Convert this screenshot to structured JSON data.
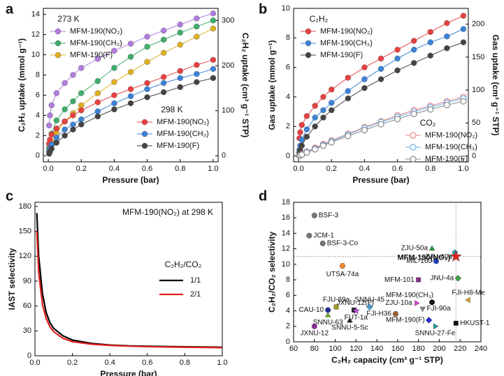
{
  "chart_data": [
    {
      "type": "line",
      "panel_label": "a",
      "x_label": "Pressure (bar)",
      "y_label": "C₂H₂ uptake (mmol g⁻¹)",
      "y2_label": "C₂H₂ uptake (cm³ g⁻¹ STP)",
      "annotations": [
        "273 K",
        "298 K"
      ],
      "x": [
        0.005,
        0.01,
        0.02,
        0.05,
        0.1,
        0.15,
        0.2,
        0.3,
        0.4,
        0.5,
        0.6,
        0.7,
        0.8,
        0.9,
        1.0
      ],
      "xlim": [
        -0.03,
        1.03
      ],
      "xticks": [
        {
          "value": 0,
          "label": "0.0"
        },
        0.2,
        0.4,
        0.6,
        0.8,
        {
          "value": 1,
          "label": "1.0"
        }
      ],
      "ylim": [
        -0.6,
        14.6
      ],
      "yticks": [
        0,
        2,
        4,
        6,
        8,
        10,
        12,
        14
      ],
      "y2lim": [
        -13.4,
        327
      ],
      "y2ticks": [
        0,
        100,
        200,
        300
      ],
      "series": [
        {
          "name": "MFM-190(NO₂)",
          "color": "#b07de0",
          "filled": true,
          "values": [
            3,
            4,
            5,
            6.2,
            7.2,
            8,
            8.7,
            9.6,
            10.4,
            11.1,
            11.8,
            12.4,
            13,
            13.6,
            14.1
          ]
        },
        {
          "name": "MFM-190(CH₃)",
          "color": "#3fae6a",
          "filled": true,
          "values": [
            0.8,
            1.3,
            2.2,
            3.5,
            4.6,
            5.4,
            6.2,
            7.4,
            8.7,
            9.8,
            10.8,
            11.5,
            12.2,
            12.8,
            13.4
          ]
        },
        {
          "name": "MFM-190(F)",
          "color": "#e0b020",
          "filled": true,
          "values": [
            0.5,
            0.8,
            1.3,
            2.3,
            3.4,
            4.2,
            5,
            6.2,
            7.3,
            8.3,
            9.3,
            10.2,
            11,
            11.8,
            12.6
          ]
        },
        {
          "name": "MFM-190(NO₂)",
          "color": "#e84040",
          "filled": true,
          "values": [
            1.2,
            1.6,
            2.1,
            2.7,
            3.4,
            4,
            4.5,
            5.3,
            6,
            6.6,
            7.2,
            7.8,
            8.4,
            9,
            9.5
          ]
        },
        {
          "name": "MFM-190(CH₃)",
          "color": "#3b82d8",
          "filled": true,
          "values": [
            0.4,
            0.7,
            1.1,
            1.8,
            2.6,
            3.1,
            3.6,
            4.4,
            5.2,
            5.9,
            6.6,
            7.2,
            7.7,
            8.1,
            8.6
          ]
        },
        {
          "name": "MFM-190(F)",
          "color": "#444444",
          "filled": true,
          "values": [
            0.2,
            0.4,
            0.7,
            1.3,
            2,
            2.6,
            3.1,
            3.9,
            4.6,
            5.2,
            5.8,
            6.3,
            6.8,
            7.3,
            7.7
          ]
        }
      ]
    },
    {
      "type": "line",
      "panel_label": "b",
      "x_label": "Pressure (bar)",
      "y_label": "Gas uptake (mmol g⁻¹)",
      "y2_label": "Gas uptake (cm³ g⁻¹ STP)",
      "annotations": [
        "C₂H₂",
        "CO₂"
      ],
      "x": [
        0.005,
        0.01,
        0.02,
        0.05,
        0.1,
        0.15,
        0.2,
        0.3,
        0.4,
        0.5,
        0.6,
        0.7,
        0.8,
        0.9,
        1.0
      ],
      "xlim": [
        -0.03,
        1.03
      ],
      "xticks": [
        {
          "value": 0,
          "label": "0.0"
        },
        0.2,
        0.4,
        0.6,
        0.8,
        {
          "value": 1,
          "label": "1.0"
        }
      ],
      "ylim": [
        -0.4,
        10
      ],
      "yticks": [
        0,
        2,
        4,
        6,
        8,
        10
      ],
      "y2lim": [
        -8.96,
        224
      ],
      "y2ticks": [
        0,
        50,
        100,
        150,
        200
      ],
      "series": [
        {
          "name": "MFM-190(NO₂)",
          "color": "#e84040",
          "filled": true,
          "values": [
            1.2,
            1.6,
            2.1,
            2.7,
            3.4,
            4,
            4.5,
            5.3,
            6,
            6.6,
            7.2,
            7.8,
            8.4,
            9,
            9.5
          ]
        },
        {
          "name": "MFM-190(CH₃)",
          "color": "#3b82d8",
          "filled": true,
          "values": [
            0.4,
            0.7,
            1.1,
            1.8,
            2.6,
            3.1,
            3.6,
            4.4,
            5.2,
            5.9,
            6.6,
            7.2,
            7.7,
            8.1,
            8.6
          ]
        },
        {
          "name": "MFM-190(F)",
          "color": "#444444",
          "filled": true,
          "values": [
            0.2,
            0.4,
            0.7,
            1.3,
            2,
            2.6,
            3.1,
            3.9,
            4.6,
            5.2,
            5.8,
            6.3,
            6.8,
            7.3,
            7.7
          ]
        },
        {
          "name": "MFM-190(NO₂)",
          "color": "#e88080",
          "filled": false,
          "values": [
            0.03,
            0.06,
            0.12,
            0.3,
            0.55,
            0.8,
            1.05,
            1.5,
            1.95,
            2.35,
            2.75,
            3.1,
            3.4,
            3.7,
            4.0
          ]
        },
        {
          "name": "MFM-190(CH₃)",
          "color": "#6ab0e8",
          "filled": false,
          "values": [
            0.03,
            0.05,
            0.1,
            0.27,
            0.5,
            0.75,
            1.0,
            1.45,
            1.9,
            2.3,
            2.65,
            3.0,
            3.3,
            3.6,
            3.9
          ]
        },
        {
          "name": "MFM-190(F)",
          "color": "#888888",
          "filled": false,
          "values": [
            0.02,
            0.04,
            0.09,
            0.24,
            0.45,
            0.7,
            0.92,
            1.35,
            1.75,
            2.15,
            2.5,
            2.85,
            3.15,
            3.45,
            3.7
          ]
        }
      ]
    },
    {
      "type": "line",
      "panel_label": "c",
      "x_label": "Pressure (bar)",
      "y_label": "IAST selectivity",
      "title": "MFM-190(NO₂) at 298 K",
      "legend_title": "C₂H₂/CO₂",
      "x": [
        0.01,
        0.02,
        0.04,
        0.06,
        0.08,
        0.1,
        0.15,
        0.2,
        0.3,
        0.4,
        0.5,
        0.6,
        0.8,
        1.0
      ],
      "xlim": [
        0,
        1
      ],
      "xticks": [
        {
          "value": 0,
          "label": "0.0"
        },
        0.2,
        0.4,
        0.6,
        0.8,
        {
          "value": 1,
          "label": "1.0"
        }
      ],
      "ylim": [
        0,
        185
      ],
      "yticks": [
        0,
        30,
        60,
        90,
        120,
        150,
        180
      ],
      "series": [
        {
          "name": "1/1",
          "color": "#000000",
          "values": [
            172,
            120,
            75,
            52,
            40,
            33,
            24,
            19,
            15,
            13,
            12,
            11.5,
            10.8,
            10.3
          ]
        },
        {
          "name": "2/1",
          "color": "#e02020",
          "values": [
            150,
            100,
            62,
            45,
            35,
            29,
            21,
            17,
            14,
            12.5,
            11.6,
            11,
            10.3,
            9.8
          ]
        }
      ]
    },
    {
      "type": "scatter",
      "panel_label": "d",
      "x_label": "C₂H₂ capacity (cm³ g⁻¹ STP)",
      "y_label": "C₂H₂/CO₂ selectivity",
      "xlim": [
        60,
        240
      ],
      "xticks": [
        60,
        80,
        100,
        120,
        140,
        160,
        180,
        200,
        220,
        240
      ],
      "ylim": [
        0,
        18
      ],
      "yticks": [
        0,
        2,
        4,
        6,
        8,
        10,
        12,
        14,
        16,
        18
      ],
      "series": [
        {
          "name": "BSF-3",
          "color": "#777777",
          "marker": "circle",
          "x": [
            80
          ],
          "values": [
            16.3
          ]
        },
        {
          "name": "JCM-1",
          "color": "#777777",
          "marker": "circle",
          "x": [
            75
          ],
          "values": [
            13.7
          ]
        },
        {
          "name": "BSF-3-Co",
          "color": "#777777",
          "marker": "circle",
          "x": [
            88
          ],
          "values": [
            12.7
          ]
        },
        {
          "name": "UTSA-74a",
          "color": "#f08a30",
          "marker": "hexagon",
          "x": [
            107
          ],
          "values": [
            9.8
          ]
        },
        {
          "name": "ZJU-50a",
          "color": "#2a9a3a",
          "marker": "triangle",
          "x": [
            193
          ],
          "values": [
            12.0
          ]
        },
        {
          "name": "ZJU-40a",
          "color": "#2aa0a8",
          "marker": "pentagon",
          "x": [
            215
          ],
          "values": [
            11.5
          ]
        },
        {
          "name": "MIL-160",
          "color": "#2040c0",
          "marker": "circle",
          "x": [
            197
          ],
          "values": [
            10.4
          ]
        },
        {
          "name": "MFM-190(NO₂)",
          "color": "#e02020",
          "marker": "star",
          "highlight": true,
          "x": [
            216
          ],
          "values": [
            11.0
          ]
        },
        {
          "name": "MFM-101",
          "color": "#8a2a8a",
          "marker": "square",
          "x": [
            180
          ],
          "values": [
            8.0
          ]
        },
        {
          "name": "JNU-4a",
          "color": "#3aa040",
          "marker": "diamond",
          "x": [
            218
          ],
          "values": [
            8.2
          ]
        },
        {
          "name": "FJI-H8-Me",
          "color": "#d0a020",
          "marker": "tri-left",
          "x": [
            228
          ],
          "values": [
            5.4
          ]
        },
        {
          "name": "MFM-190(CH₃)",
          "color": "#111111",
          "marker": "circle",
          "x": [
            193
          ],
          "values": [
            5.1
          ]
        },
        {
          "name": "ZJU-10a",
          "color": "#e040e0",
          "marker": "tri-right",
          "x": [
            178
          ],
          "values": [
            5.0
          ]
        },
        {
          "name": "FJI-90a",
          "color": "#888888",
          "marker": "tri-down",
          "x": [
            184
          ],
          "values": [
            4.3
          ]
        },
        {
          "name": "SNNU-45",
          "color": "#4a9ad0",
          "marker": "diamond",
          "x": [
            133
          ],
          "values": [
            4.5
          ]
        },
        {
          "name": "FJI-H36",
          "color": "#a06030",
          "marker": "hexagon",
          "x": [
            158
          ],
          "values": [
            3.6
          ]
        },
        {
          "name": "FJU-89a",
          "color": "#9a9a20",
          "marker": "square",
          "x": [
            101
          ],
          "values": [
            4.5
          ]
        },
        {
          "name": "JXNU-12(F)",
          "color": "#222222",
          "marker": "square",
          "x": [
            118
          ],
          "values": [
            4.1
          ]
        },
        {
          "name": "CAU-10",
          "color": "#203090",
          "marker": "circle",
          "x": [
            93
          ],
          "values": [
            4.1
          ]
        },
        {
          "name": "FUT-1a",
          "color": "#c040e0",
          "marker": "star",
          "x": [
            120
          ],
          "values": [
            4.0
          ]
        },
        {
          "name": "SNNU-63",
          "color": "#70b030",
          "marker": "triangle",
          "x": [
            93
          ],
          "values": [
            3.4
          ]
        },
        {
          "name": "SNNU-5-Sc",
          "color": "#222222",
          "marker": "triangle",
          "x": [
            114
          ],
          "values": [
            2.7
          ]
        },
        {
          "name": "MFM-190(F)",
          "color": "#2a30c8",
          "marker": "diamond",
          "x": [
            190
          ],
          "values": [
            2.8
          ]
        },
        {
          "name": "SNNU-27-Fe",
          "color": "#20a0a0",
          "marker": "tri-right",
          "x": [
            196
          ],
          "values": [
            2.0
          ]
        },
        {
          "name": "HKUST-1",
          "color": "#111111",
          "marker": "square",
          "x": [
            216
          ],
          "values": [
            2.4
          ]
        },
        {
          "name": "JXNU-12",
          "color": "#8a2a9a",
          "marker": "circle",
          "x": [
            80
          ],
          "values": [
            2.0
          ]
        }
      ]
    }
  ]
}
